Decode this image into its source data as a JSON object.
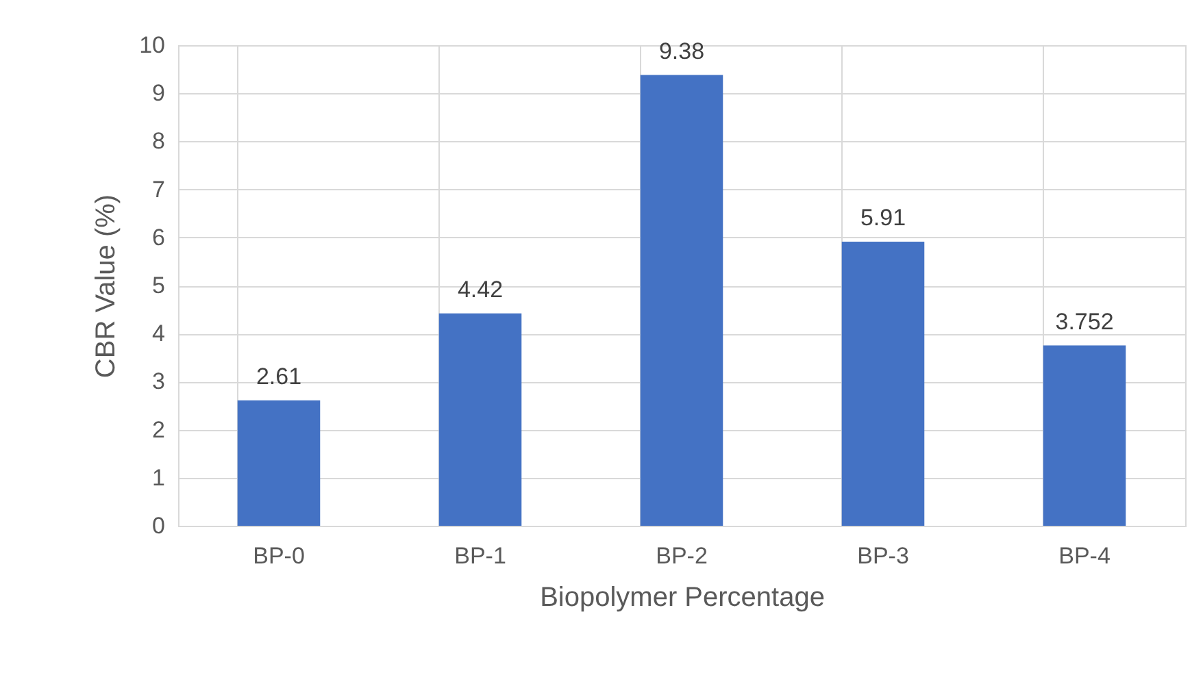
{
  "chart_data": {
    "type": "bar",
    "xlabel": "Biopolymer Percentage",
    "ylabel": "CBR Value (%)",
    "categories": [
      "BP-0",
      "BP-1",
      "BP-2",
      "BP-3",
      "BP-4"
    ],
    "values": [
      2.61,
      4.42,
      9.38,
      5.91,
      3.752
    ],
    "color": "#4472c4",
    "ylim": [
      0,
      10
    ],
    "yticks": [
      0,
      1,
      2,
      3,
      4,
      5,
      6,
      7,
      8,
      9,
      10
    ],
    "grid": true,
    "data_labels": true
  }
}
